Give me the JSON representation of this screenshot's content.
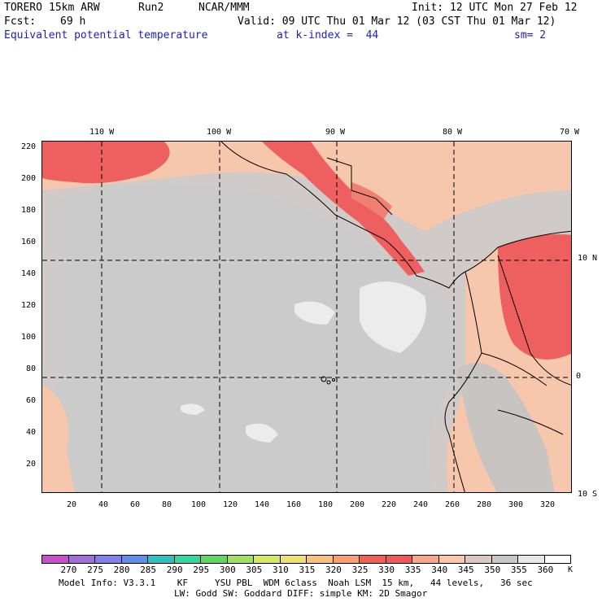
{
  "header": {
    "model": "TORERO",
    "resolution": "15km ARW",
    "run": "Run2",
    "org": "NCAR/MMM",
    "init": "Init: 12 UTC Mon 27 Feb 12",
    "fcst_label": "Fcst:",
    "fcst_value": "69 h",
    "valid": "Valid: 09 UTC Thu 01 Mar 12 (03 CST Thu 01 Mar 12)",
    "field": "Equivalent potential temperature",
    "level": "at k-index =  44",
    "smoothing": "sm= 2"
  },
  "map": {
    "lon_labels": [
      "110 W",
      "100 W",
      "90 W",
      "80 W",
      "70 W"
    ],
    "lat_labels": [
      "10 N",
      "0",
      "10 S"
    ],
    "y_ticks": [
      "220",
      "200",
      "180",
      "160",
      "140",
      "120",
      "100",
      "80",
      "60",
      "40",
      "20"
    ],
    "x_ticks": [
      "20",
      "40",
      "60",
      "80",
      "100",
      "120",
      "140",
      "160",
      "180",
      "200",
      "220",
      "240",
      "260",
      "280",
      "300",
      "320"
    ]
  },
  "colorbar": {
    "unit": "K",
    "labels": [
      "270",
      "275",
      "280",
      "285",
      "290",
      "295",
      "300",
      "305",
      "310",
      "315",
      "320",
      "325",
      "330",
      "335",
      "340",
      "345",
      "350",
      "355",
      "360"
    ],
    "colors": [
      "#c84fc8",
      "#a070d8",
      "#8080e8",
      "#5f8fe8",
      "#30c0c0",
      "#30d8a0",
      "#60d860",
      "#a0e060",
      "#d8e860",
      "#f0e070",
      "#f8c078",
      "#f8a070",
      "#f06050",
      "#f05858",
      "#f8a888",
      "#f8c8a8",
      "#d8c8c0",
      "#c8c8c8",
      "#e8e8e8",
      "#ffffff"
    ]
  },
  "footer": {
    "line1": "Model Info: V3.3.1    KF     YSU PBL  WDM 6class  Noah LSM  15 km,   44 levels,   36 sec",
    "line2": "LW: Godd SW: Goddard DIFF: simple KM: 2D Smagor"
  }
}
